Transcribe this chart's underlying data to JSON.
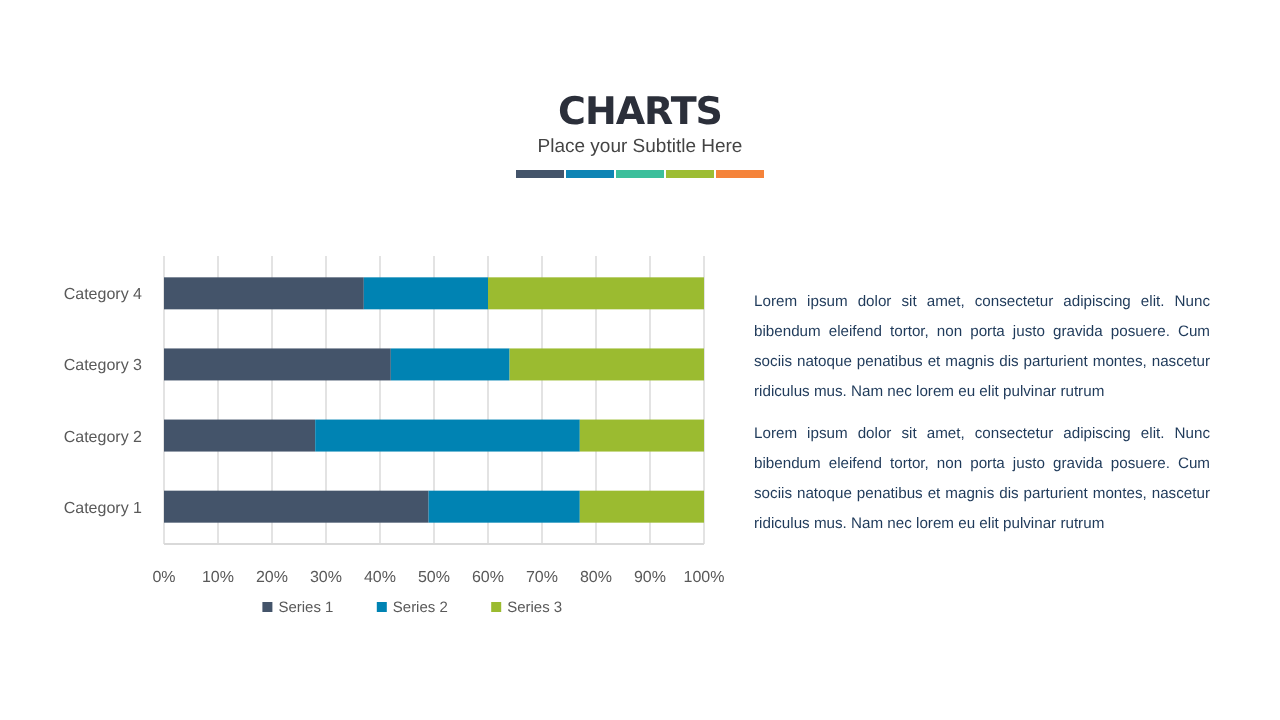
{
  "chart_data": {
    "type": "bar",
    "orientation": "horizontal",
    "stacked": true,
    "title": "CHARTS",
    "subtitle": "Place your Subtitle Here",
    "categories": [
      "Category 4",
      "Category 3",
      "Category 2",
      "Category 1"
    ],
    "series": [
      {
        "name": "Series 1",
        "color": "#44546a",
        "values": [
          37,
          42,
          28,
          49
        ]
      },
      {
        "name": "Series 2",
        "color": "#0083b3",
        "values": [
          23,
          22,
          49,
          28
        ]
      },
      {
        "name": "Series 3",
        "color": "#9bbb30",
        "values": [
          40,
          36,
          23,
          23
        ]
      }
    ],
    "xlim": [
      0,
      100
    ],
    "xticks": [
      {
        "value": 0,
        "label": "0%"
      },
      {
        "value": 10,
        "label": "10%"
      },
      {
        "value": 20,
        "label": "20%"
      },
      {
        "value": 30,
        "label": "30%"
      },
      {
        "value": 40,
        "label": "40%"
      },
      {
        "value": 50,
        "label": "50%"
      },
      {
        "value": 60,
        "label": "60%"
      },
      {
        "value": 70,
        "label": "70%"
      },
      {
        "value": 80,
        "label": "80%"
      },
      {
        "value": 90,
        "label": "90%"
      },
      {
        "value": 100,
        "label": "100%"
      }
    ],
    "grid": "x",
    "legend": "bottom",
    "annotations": [
      "Lorem ipsum dolor sit amet, consectetur adipiscing elit. Nunc bibendum eleifend tortor, non porta justo gravida posuere. Cum sociis natoque penatibus et magnis dis parturient montes, nascetur ridiculus mus. Nam nec lorem eu elit pulvinar rutrum",
      "Lorem ipsum dolor sit amet, consectetur adipiscing elit. Nunc bibendum eleifend tortor, non porta justo gravida posuere. Cum sociis natoque penatibus et magnis dis parturient montes, nascetur ridiculus mus. Nam nec lorem eu elit pulvinar rutrum"
    ]
  }
}
